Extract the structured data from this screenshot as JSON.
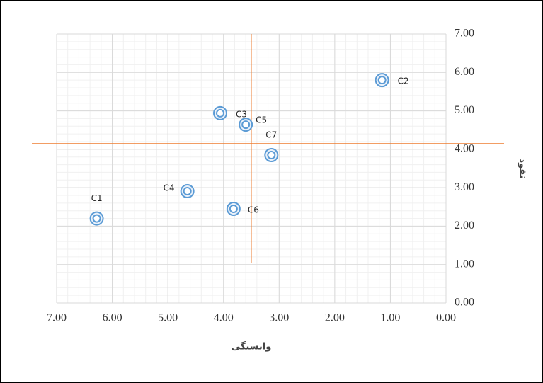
{
  "chart_data": {
    "type": "scatter",
    "x_label": "وابستگی",
    "y_label": "نفوذ",
    "xlim": [
      7,
      0
    ],
    "ylim": [
      0,
      7
    ],
    "xticks": [
      {
        "value": 7,
        "label": "7.00"
      },
      {
        "value": 6,
        "label": "6.00"
      },
      {
        "value": 5,
        "label": "5.00"
      },
      {
        "value": 4,
        "label": "4.00"
      },
      {
        "value": 3,
        "label": "3.00"
      },
      {
        "value": 2,
        "label": "2.00"
      },
      {
        "value": 1,
        "label": "1.00"
      },
      {
        "value": 0,
        "label": "0.00"
      }
    ],
    "yticks": [
      {
        "value": 0,
        "label": "0.00"
      },
      {
        "value": 1,
        "label": "1.00"
      },
      {
        "value": 2,
        "label": "2.00"
      },
      {
        "value": 3,
        "label": "3.00"
      },
      {
        "value": 4,
        "label": "4.00"
      },
      {
        "value": 5,
        "label": "5.00"
      },
      {
        "value": 6,
        "label": "6.00"
      },
      {
        "value": 7,
        "label": "7.00"
      }
    ],
    "grid": true,
    "reference_lines": {
      "x": 3.5,
      "y": 4.15,
      "color": "#ed7d31"
    },
    "series": [
      {
        "color": "#5b9bd5",
        "point_labels": [
          "C1",
          "C2",
          "C3",
          "C4",
          "C5",
          "C6",
          "C7"
        ],
        "x": [
          6.28,
          1.15,
          4.06,
          4.65,
          3.6,
          3.82,
          3.14
        ],
        "values": [
          2.2,
          5.8,
          4.94,
          2.91,
          4.64,
          2.45,
          3.85
        ]
      }
    ]
  }
}
